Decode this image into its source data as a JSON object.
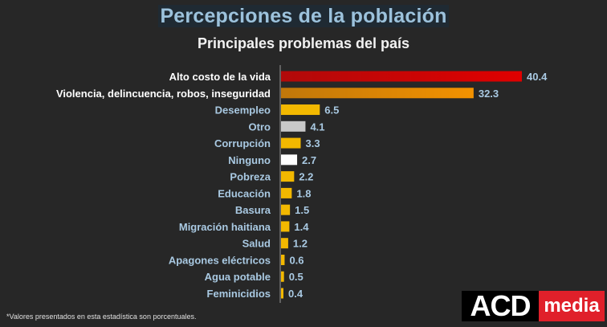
{
  "chart_data": {
    "type": "bar",
    "orientation": "horizontal",
    "title": "Percepciones de la población",
    "subtitle": "Principales problemas del país",
    "categories": [
      "Alto costo de la vida",
      "Violencia, delincuencia, robos, inseguridad",
      "Desempleo",
      "Otro",
      "Corrupción",
      "Ninguno",
      "Pobreza",
      "Educación",
      "Basura",
      "Migración haitiana",
      "Salud",
      "Apagones eléctricos",
      "Agua potable",
      "Feminicidios"
    ],
    "values": [
      40.4,
      32.3,
      6.5,
      4.1,
      3.3,
      2.7,
      2.2,
      1.8,
      1.5,
      1.4,
      1.2,
      0.6,
      0.5,
      0.4
    ],
    "bar_colors": [
      "#e00000",
      "#f39200",
      "#f2b800",
      "#c8c8c8",
      "#f2b800",
      "#ffffff",
      "#f2b800",
      "#f2b800",
      "#f2b800",
      "#f2b800",
      "#f2b800",
      "#f2b800",
      "#f2b800",
      "#f2b800"
    ],
    "label_colors": [
      "#ffffff",
      "#ffffff",
      "#a9c9e2",
      "#a9c9e2",
      "#a9c9e2",
      "#a9c9e2",
      "#a9c9e2",
      "#a9c9e2",
      "#a9c9e2",
      "#a9c9e2",
      "#a9c9e2",
      "#a9c9e2",
      "#a9c9e2",
      "#a9c9e2"
    ],
    "value_color": "#a9c9e2",
    "grid": false,
    "legend": "none"
  },
  "footnote": "*Valores presentados en esta estadística son porcentuales.",
  "logo": {
    "part1": "ACD",
    "part2": "media"
  }
}
